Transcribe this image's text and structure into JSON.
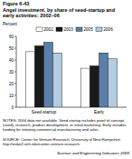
{
  "chart_data": {
    "type": "bar",
    "figure_label": "Figure 6-43",
    "title": "Angel investment, by share of seed-startup and early activities: 2002–06",
    "y_label": "Percent",
    "categories": [
      "Seed-startup",
      "Early"
    ],
    "series": [
      {
        "name": "2002",
        "color": "#ffffff",
        "values": [
          47,
          33
        ]
      },
      {
        "name": "2003",
        "color": "#1a1a1a",
        "values": [
          52,
          35
        ]
      },
      {
        "name": "2005",
        "color": "#5a7fa8",
        "values": [
          55,
          46
        ]
      },
      {
        "name": "2006",
        "color": "#b3cbe3",
        "values": [
          46,
          41
        ]
      }
    ],
    "ylim": [
      0,
      60
    ],
    "yticks": [
      0,
      10,
      20,
      30,
      40,
      50,
      60
    ],
    "grid": false,
    "legend": "top",
    "notes": "NOTES: 2004 data not available. Seed-startup includes proof of concept (seed), research, product development, or initial marketing. Early includes funding for initiating commercial manufacturing and sales.",
    "source": "SOURCE: Center for Venture Research, University of New Hampshire, http://wsbe2.unh.edu/center-venture-research.",
    "footer": "Science and Engineering Indicators 2008"
  }
}
